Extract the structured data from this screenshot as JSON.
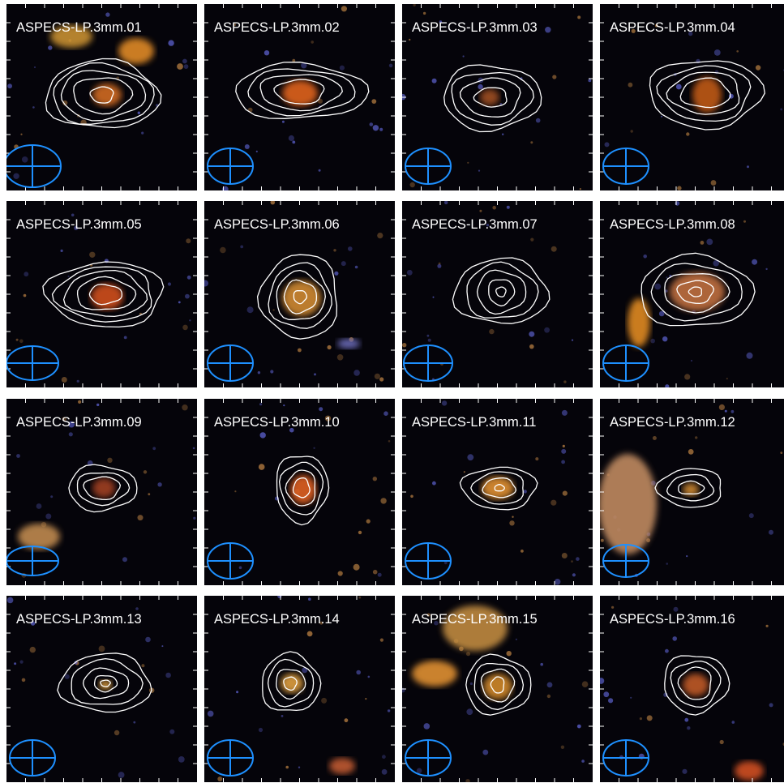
{
  "panels": [
    {
      "label": "ASPECS-LP.3mm.01"
    },
    {
      "label": "ASPECS-LP.3mm.02"
    },
    {
      "label": "ASPECS-LP.3mm.03"
    },
    {
      "label": "ASPECS-LP.3mm.04"
    },
    {
      "label": "ASPECS-LP.3mm.05"
    },
    {
      "label": "ASPECS-LP.3mm.06"
    },
    {
      "label": "ASPECS-LP.3mm.07"
    },
    {
      "label": "ASPECS-LP.3mm.08"
    },
    {
      "label": "ASPECS-LP.3mm.09"
    },
    {
      "label": "ASPECS-LP.3mm.10"
    },
    {
      "label": "ASPECS-LP.3mm.11"
    },
    {
      "label": "ASPECS-LP.3mm.12"
    },
    {
      "label": "ASPECS-LP.3mm.13"
    },
    {
      "label": "ASPECS-LP.3mm.14"
    },
    {
      "label": "ASPECS-LP.3mm.15"
    },
    {
      "label": "ASPECS-LP.3mm.16"
    }
  ],
  "colors": {
    "background": "#05040a",
    "contour": "#ffffff",
    "beam": "#1e90ff",
    "galaxy_orange": "#e0701a",
    "galaxy_blue": "#5a5fc8"
  },
  "icons": {
    "beam": "beam-ellipse-icon"
  }
}
